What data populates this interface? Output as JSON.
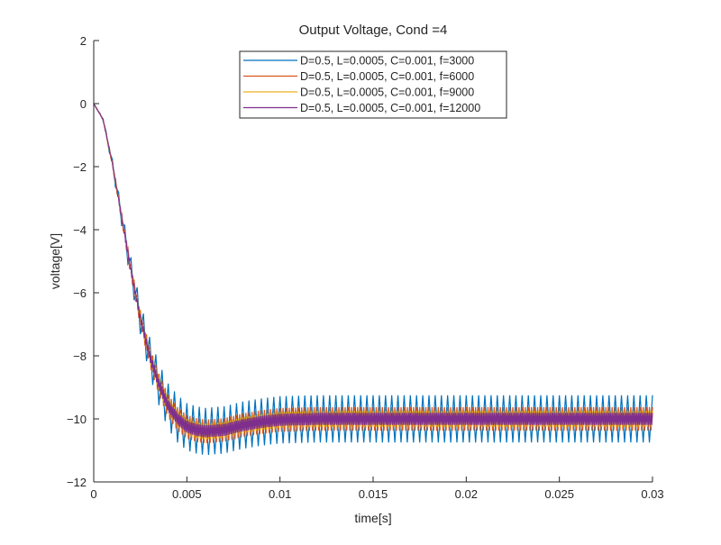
{
  "chart_data": {
    "type": "line",
    "title": "Output Voltage, Cond =4",
    "xlabel": "time[s]",
    "ylabel": "voltage[V]",
    "xlim": [
      0,
      0.03
    ],
    "ylim": [
      -12,
      2
    ],
    "xticks": [
      0,
      0.005,
      0.01,
      0.015,
      0.02,
      0.025,
      0.03
    ],
    "xtick_labels": [
      "0",
      "0.005",
      "0.01",
      "0.015",
      "0.02",
      "0.025",
      "0.03"
    ],
    "yticks": [
      2,
      0,
      -2,
      -4,
      -6,
      -8,
      -10,
      -12
    ],
    "ytick_labels": [
      "2",
      "0",
      "−2",
      "−4",
      "−6",
      "−8",
      "−10",
      "−12"
    ],
    "grid": false,
    "legend_position": "top-center",
    "mean_curve": {
      "x": [
        0,
        0.0005,
        0.001,
        0.0015,
        0.002,
        0.0025,
        0.003,
        0.0035,
        0.004,
        0.0045,
        0.005,
        0.0055,
        0.006,
        0.007,
        0.008,
        0.009,
        0.01,
        0.012,
        0.03
      ],
      "y": [
        0,
        -0.5,
        -1.9,
        -3.6,
        -5.3,
        -6.8,
        -8.0,
        -8.9,
        -9.6,
        -10.0,
        -10.25,
        -10.35,
        -10.4,
        -10.35,
        -10.2,
        -10.1,
        -10.03,
        -10.0,
        -10.0
      ]
    },
    "series": [
      {
        "name": "D=0.5, L=0.0005, C=0.001, f=3000",
        "frequency": 3000,
        "ripple_pp": 1.5,
        "color": "#0072BD"
      },
      {
        "name": "D=0.5, L=0.0005, C=0.001, f=6000",
        "frequency": 6000,
        "ripple_pp": 0.75,
        "color": "#D95319"
      },
      {
        "name": "D=0.5, L=0.0005, C=0.001, f=9000",
        "frequency": 9000,
        "ripple_pp": 0.5,
        "color": "#EDB120"
      },
      {
        "name": "D=0.5, L=0.0005, C=0.001, f=12000",
        "frequency": 12000,
        "ripple_pp": 0.38,
        "color": "#7E2F8E"
      }
    ]
  }
}
